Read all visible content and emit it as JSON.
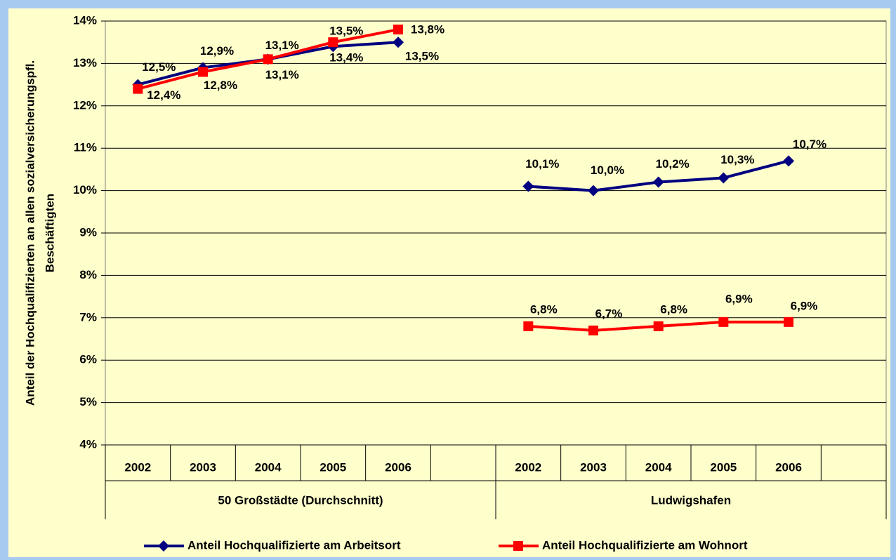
{
  "chart_data": {
    "type": "line",
    "y_label": [
      "Anteil der Hochqualifizierten an allen sozialversicherungspfl.",
      "Beschäftigten"
    ],
    "categories": [
      "2002",
      "2003",
      "2004",
      "2005",
      "2006",
      null,
      "2002",
      "2003",
      "2004",
      "2005",
      "2006",
      null
    ],
    "groups": [
      "50 Großstädte (Durchschnitt)",
      "Ludwigshafen"
    ],
    "ylim": [
      4,
      14
    ],
    "yticks": [
      {
        "value": 4,
        "label": "4%"
      },
      {
        "value": 5,
        "label": "5%"
      },
      {
        "value": 6,
        "label": "6%"
      },
      {
        "value": 7,
        "label": "7%"
      },
      {
        "value": 8,
        "label": "8%"
      },
      {
        "value": 9,
        "label": "9%"
      },
      {
        "value": 10,
        "label": "10%"
      },
      {
        "value": 11,
        "label": "11%"
      },
      {
        "value": 12,
        "label": "12%"
      },
      {
        "value": 13,
        "label": "13%"
      },
      {
        "value": 14,
        "label": "14%"
      }
    ],
    "grid": true,
    "legend": "bottom",
    "series": [
      {
        "name": "Anteil Hochqualifizierte am Arbeitsort",
        "color": "#000080",
        "marker": "diamond",
        "values": [
          12.5,
          12.9,
          13.1,
          13.4,
          13.5,
          null,
          10.1,
          10.0,
          10.2,
          10.3,
          10.7,
          null
        ],
        "value_labels": [
          "12,5%",
          "12,9%",
          "13,1%",
          "13,4%",
          "13,5%",
          null,
          "10,1%",
          "10,0%",
          "10,2%",
          "10,3%",
          "10,7%",
          null
        ]
      },
      {
        "name": "Anteil Hochqualifizierte am Wohnort",
        "color": "#ff0000",
        "marker": "square",
        "values": [
          12.4,
          12.8,
          13.1,
          13.5,
          13.8,
          null,
          6.8,
          6.7,
          6.8,
          6.9,
          6.9,
          null
        ],
        "value_labels": [
          "12,4%",
          "12,8%",
          "13,1%",
          "13,5%",
          "13,8%",
          null,
          "6,8%",
          "6,7%",
          "6,8%",
          "6,9%",
          "6,9%",
          null
        ]
      }
    ]
  }
}
